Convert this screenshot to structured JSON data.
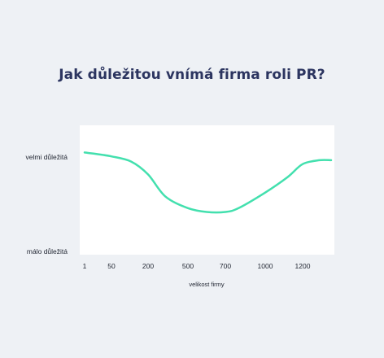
{
  "chart_data": {
    "type": "line",
    "title": "Jak důležitou vnímá firma roli PR?",
    "xlabel": "velikost firmy",
    "ylabel": "",
    "x_tick_labels": [
      "1",
      "50",
      "200",
      "500",
      "700",
      "1000",
      "1200"
    ],
    "y_tick_labels": [
      "velmi důležitá",
      "málo důležitá"
    ],
    "ylim": [
      0,
      1
    ],
    "grid": false,
    "series": [
      {
        "color": "#43e0ae",
        "points": [
          {
            "x": 1,
            "y": 0.79
          },
          {
            "x": 20,
            "y": 0.78
          },
          {
            "x": 50,
            "y": 0.76
          },
          {
            "x": 130,
            "y": 0.72
          },
          {
            "x": 200,
            "y": 0.62
          },
          {
            "x": 330,
            "y": 0.45
          },
          {
            "x": 500,
            "y": 0.36
          },
          {
            "x": 600,
            "y": 0.33
          },
          {
            "x": 700,
            "y": 0.33
          },
          {
            "x": 800,
            "y": 0.36
          },
          {
            "x": 1000,
            "y": 0.48
          },
          {
            "x": 1120,
            "y": 0.6
          },
          {
            "x": 1200,
            "y": 0.7
          },
          {
            "x": 1300,
            "y": 0.73
          },
          {
            "x": 1370,
            "y": 0.73
          }
        ]
      }
    ]
  }
}
